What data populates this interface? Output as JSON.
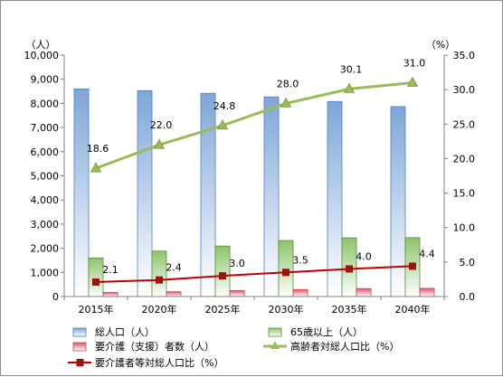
{
  "chart_data": {
    "type": "bar",
    "categories": [
      "2015年",
      "2020年",
      "2025年",
      "2030年",
      "2035年",
      "2040年"
    ],
    "left_axis": {
      "unit_label": "（人）",
      "range": [
        0,
        10000
      ],
      "ticks": [
        "0",
        "1,000",
        "2,000",
        "3,000",
        "4,000",
        "5,000",
        "6,000",
        "7,000",
        "8,000",
        "9,000",
        "10,000"
      ]
    },
    "right_axis": {
      "unit_label": "（%）",
      "range": [
        0,
        35
      ],
      "ticks": [
        "0.0",
        "5.0",
        "10.0",
        "15.0",
        "20.0",
        "25.0",
        "30.0",
        "35.0"
      ]
    },
    "grid": false,
    "legend_placement": "bottom",
    "series": [
      {
        "name": "総人口（人）",
        "type": "bar",
        "axis": "left",
        "color": "#4f81bd",
        "values": [
          8600,
          8530,
          8420,
          8270,
          8080,
          7870
        ]
      },
      {
        "name": "65歳以上（人）",
        "type": "bar",
        "axis": "left",
        "color": "#9bbb59",
        "values": [
          1600,
          1880,
          2090,
          2320,
          2430,
          2440
        ]
      },
      {
        "name": "要介護（支援）者数（人）",
        "type": "bar",
        "axis": "left",
        "color": "#c0504d",
        "values": [
          170,
          200,
          250,
          290,
          330,
          340
        ]
      },
      {
        "name": "高齢者対総人口比（%）",
        "type": "line",
        "axis": "right",
        "color": "#9bbb59",
        "marker": "triangle",
        "values": [
          18.6,
          22.0,
          24.8,
          28.0,
          30.1,
          31.0
        ],
        "labels": [
          "18.6",
          "22.0",
          "24.8",
          "28.0",
          "30.1",
          "31.0"
        ]
      },
      {
        "name": "要介護者等対総人口比（%）",
        "type": "line",
        "axis": "right",
        "color": "#c00000",
        "marker": "square",
        "values": [
          2.1,
          2.4,
          3.0,
          3.5,
          4.0,
          4.4
        ],
        "labels": [
          "2.1",
          "2.4",
          "3.0",
          "3.5",
          "4.0",
          "4.4"
        ]
      }
    ]
  }
}
